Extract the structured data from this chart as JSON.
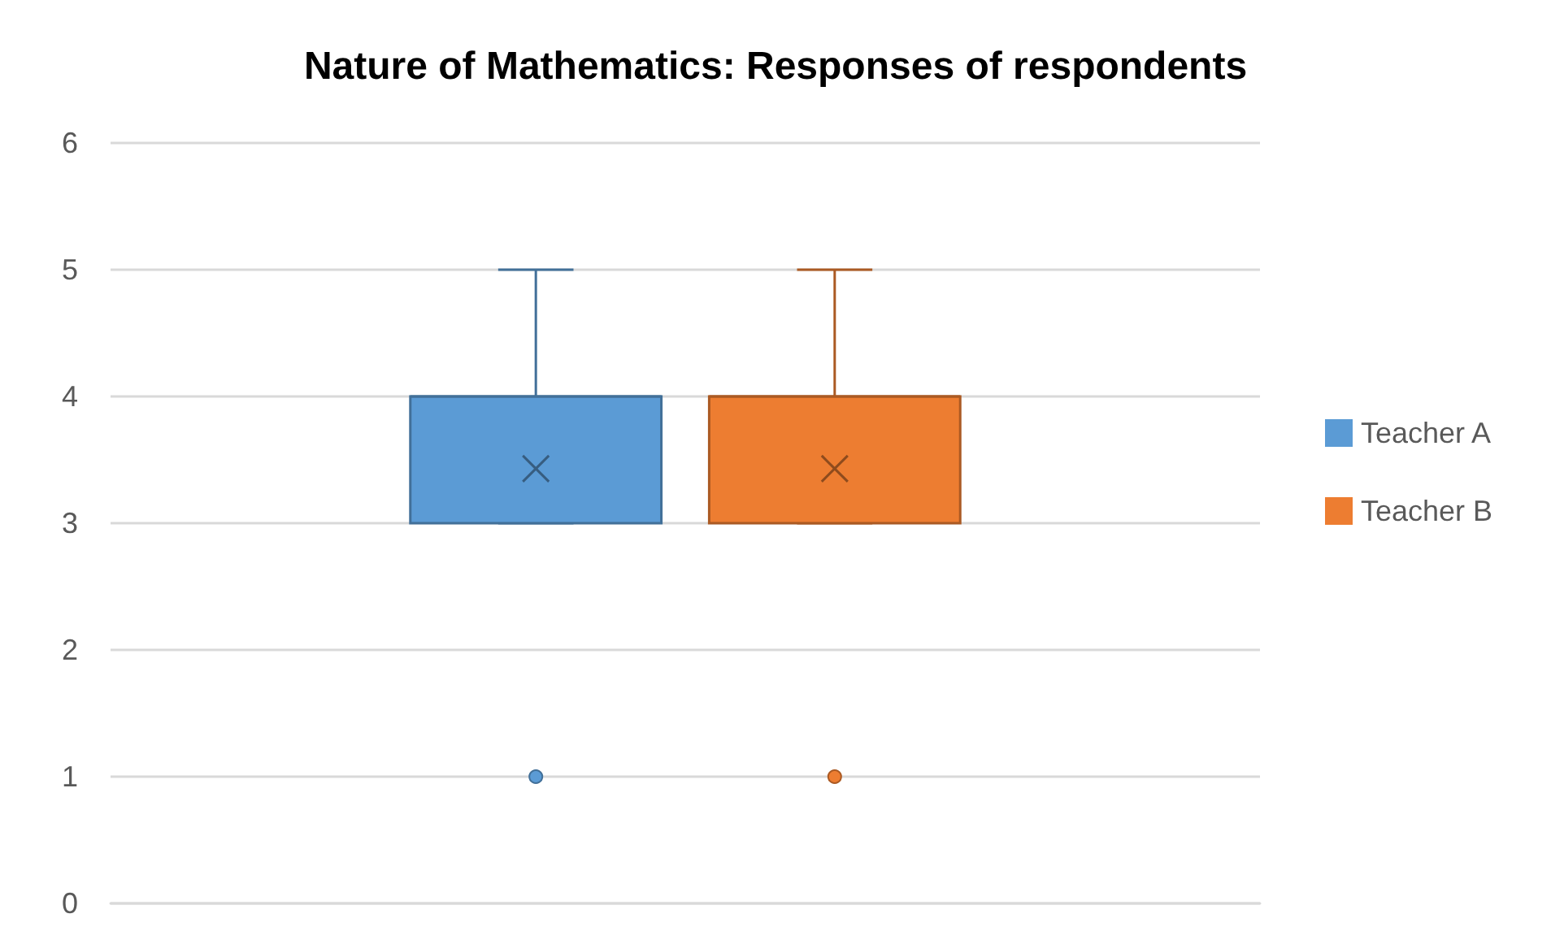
{
  "chart_data": {
    "type": "box",
    "title": "Nature of Mathematics: Responses of respondents",
    "categories": [
      null
    ],
    "series": [
      {
        "name": "Teacher A",
        "color": "#5b9bd5",
        "boxes": [
          {
            "low": 3,
            "q1": 3,
            "median": 4,
            "q3": 4,
            "high": 5,
            "mean": 3.43,
            "outliers": [
              1
            ]
          }
        ]
      },
      {
        "name": "Teacher B",
        "color": "#ed7d31",
        "boxes": [
          {
            "low": 3,
            "q1": 3,
            "median": 4,
            "q3": 4,
            "high": 5,
            "mean": 3.43,
            "outliers": [
              1
            ]
          }
        ]
      }
    ],
    "ylim": [
      0,
      6
    ],
    "yticks": [
      0,
      1,
      2,
      3,
      4,
      5,
      6
    ],
    "grid": "y",
    "legend": "right"
  }
}
